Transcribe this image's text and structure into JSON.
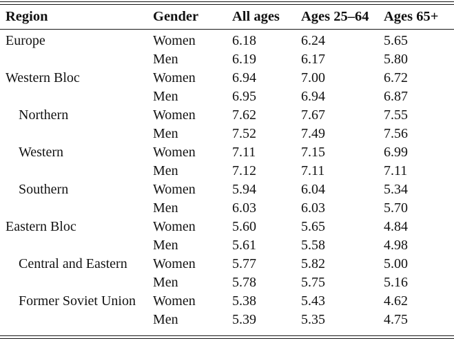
{
  "table": {
    "columns": [
      "Region",
      "Gender",
      "All ages",
      "Ages 25–64",
      "Ages 65+"
    ],
    "rows": [
      {
        "region": "Europe",
        "indent": false,
        "gender": "Women",
        "all_ages": "6.18",
        "ages_25_64": "6.24",
        "ages_65_plus": "5.65"
      },
      {
        "region": "",
        "indent": false,
        "gender": "Men",
        "all_ages": "6.19",
        "ages_25_64": "6.17",
        "ages_65_plus": "5.80"
      },
      {
        "region": "Western Bloc",
        "indent": false,
        "gender": "Women",
        "all_ages": "6.94",
        "ages_25_64": "7.00",
        "ages_65_plus": "6.72"
      },
      {
        "region": "",
        "indent": false,
        "gender": "Men",
        "all_ages": "6.95",
        "ages_25_64": "6.94",
        "ages_65_plus": "6.87"
      },
      {
        "region": "Northern",
        "indent": true,
        "gender": "Women",
        "all_ages": "7.62",
        "ages_25_64": "7.67",
        "ages_65_plus": "7.55"
      },
      {
        "region": "",
        "indent": false,
        "gender": "Men",
        "all_ages": "7.52",
        "ages_25_64": "7.49",
        "ages_65_plus": "7.56"
      },
      {
        "region": "Western",
        "indent": true,
        "gender": "Women",
        "all_ages": "7.11",
        "ages_25_64": "7.15",
        "ages_65_plus": "6.99"
      },
      {
        "region": "",
        "indent": false,
        "gender": "Men",
        "all_ages": "7.12",
        "ages_25_64": "7.11",
        "ages_65_plus": "7.11"
      },
      {
        "region": "Southern",
        "indent": true,
        "gender": "Women",
        "all_ages": "5.94",
        "ages_25_64": "6.04",
        "ages_65_plus": "5.34"
      },
      {
        "region": "",
        "indent": false,
        "gender": "Men",
        "all_ages": "6.03",
        "ages_25_64": "6.03",
        "ages_65_plus": "5.70"
      },
      {
        "region": "Eastern Bloc",
        "indent": false,
        "gender": "Women",
        "all_ages": "5.60",
        "ages_25_64": "5.65",
        "ages_65_plus": "4.84"
      },
      {
        "region": "",
        "indent": false,
        "gender": "Men",
        "all_ages": "5.61",
        "ages_25_64": "5.58",
        "ages_65_plus": "4.98"
      },
      {
        "region": "Central and Eastern",
        "indent": true,
        "gender": "Women",
        "all_ages": "5.77",
        "ages_25_64": "5.82",
        "ages_65_plus": "5.00"
      },
      {
        "region": "",
        "indent": false,
        "gender": "Men",
        "all_ages": "5.78",
        "ages_25_64": "5.75",
        "ages_65_plus": "5.16"
      },
      {
        "region": "Former Soviet Union",
        "indent": true,
        "gender": "Women",
        "all_ages": "5.38",
        "ages_25_64": "5.43",
        "ages_65_plus": "4.62"
      },
      {
        "region": "",
        "indent": false,
        "gender": "Men",
        "all_ages": "5.39",
        "ages_25_64": "5.35",
        "ages_65_plus": "4.75"
      }
    ]
  },
  "colors": {
    "text": "#121212",
    "rule": "#161616",
    "background": "#ffffff"
  }
}
